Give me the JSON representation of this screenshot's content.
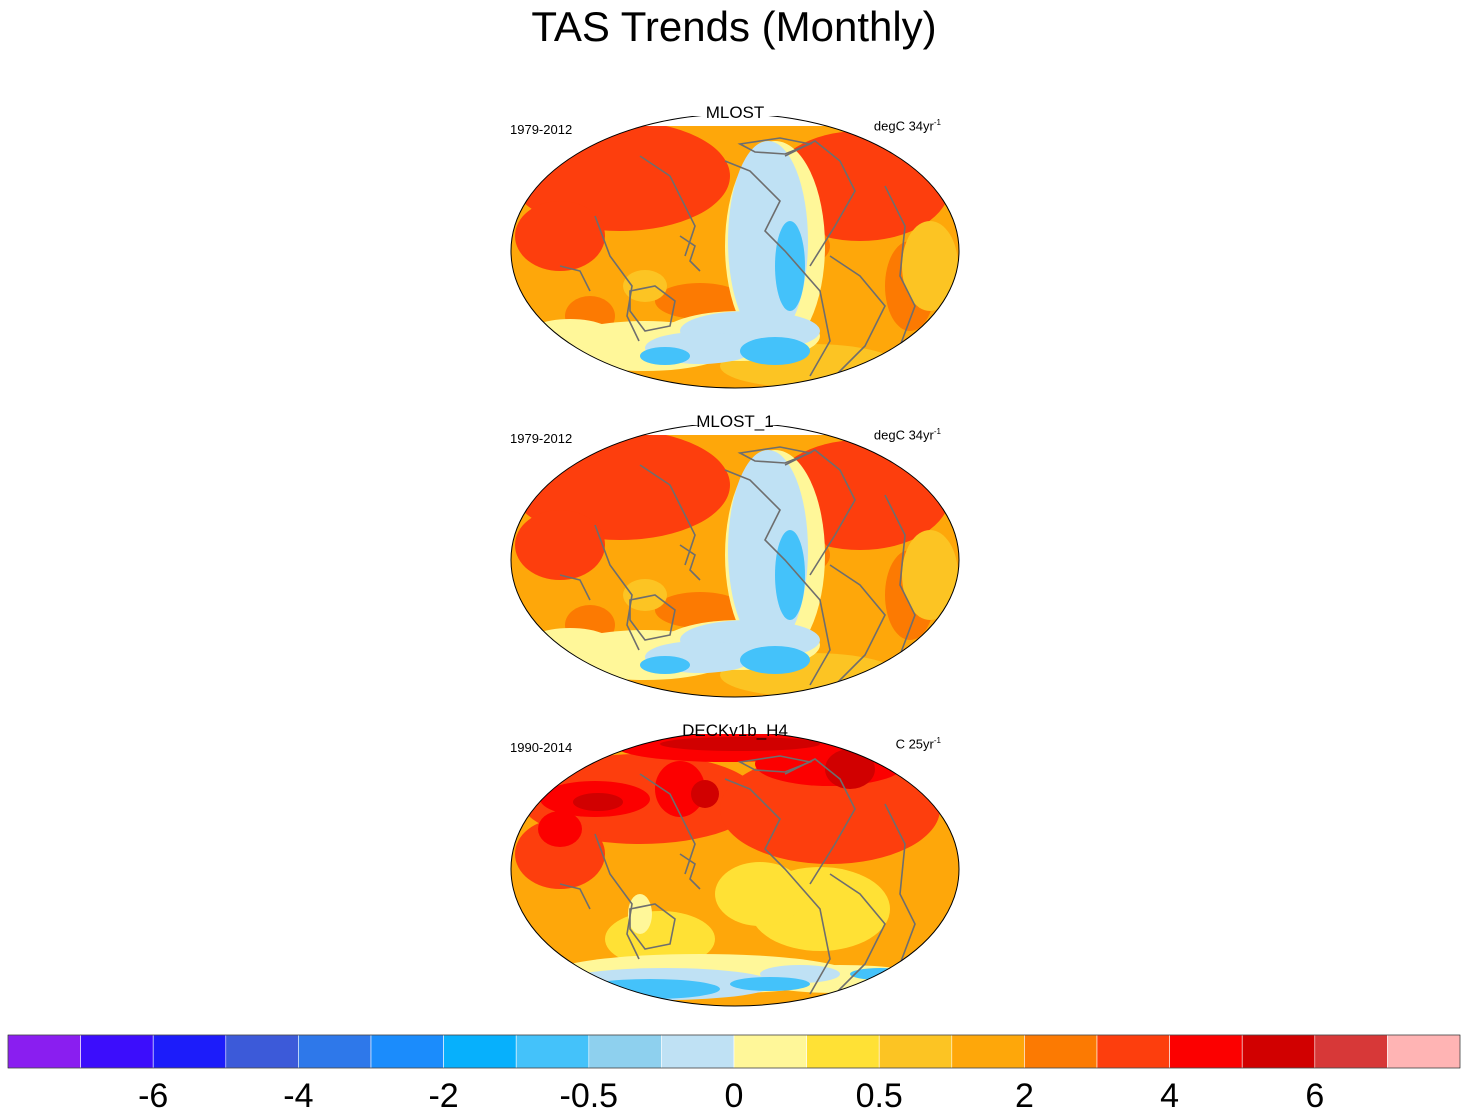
{
  "title": "TAS Trends (Monthly)",
  "panels": [
    {
      "name": "MLOST",
      "period": "1979-2012",
      "units": "degC 34yr",
      "units_exp": "-1",
      "pattern": "mlost"
    },
    {
      "name": "MLOST_1",
      "period": "1979-2012",
      "units": "degC 34yr",
      "units_exp": "-1",
      "pattern": "mlost"
    },
    {
      "name": "DECKv1b_H4",
      "period": "1990-2014",
      "units": "C 25yr",
      "units_exp": "-1",
      "pattern": "deck"
    }
  ],
  "chart_data": {
    "type": "heatmap",
    "title": "TAS Trends (Monthly)",
    "projection": "robinson",
    "panels": [
      {
        "title": "MLOST",
        "left_label": "1979-2012",
        "right_label": "degC 34yr-1"
      },
      {
        "title": "MLOST_1",
        "left_label": "1979-2012",
        "right_label": "degC 34yr-1"
      },
      {
        "title": "DECKv1b_H4",
        "left_label": "1990-2014",
        "right_label": "C 25yr-1"
      }
    ],
    "colorbar": {
      "colors": [
        "#8a1ef0",
        "#3c0dfc",
        "#1c1cfa",
        "#3c5ad9",
        "#2e78ea",
        "#1b8cfc",
        "#07b0fc",
        "#44c2fa",
        "#8ed0ee",
        "#bfe1f4",
        "#fff799",
        "#ffe135",
        "#fcc423",
        "#fea70a",
        "#fc7a02",
        "#fd3e0d",
        "#fc0000",
        "#d10000",
        "#d73838",
        "#ffb4b4"
      ],
      "tick_labels": [
        "-6",
        "-4",
        "-2",
        "-0.5",
        "0",
        "0.5",
        "2",
        "4",
        "6"
      ]
    }
  }
}
